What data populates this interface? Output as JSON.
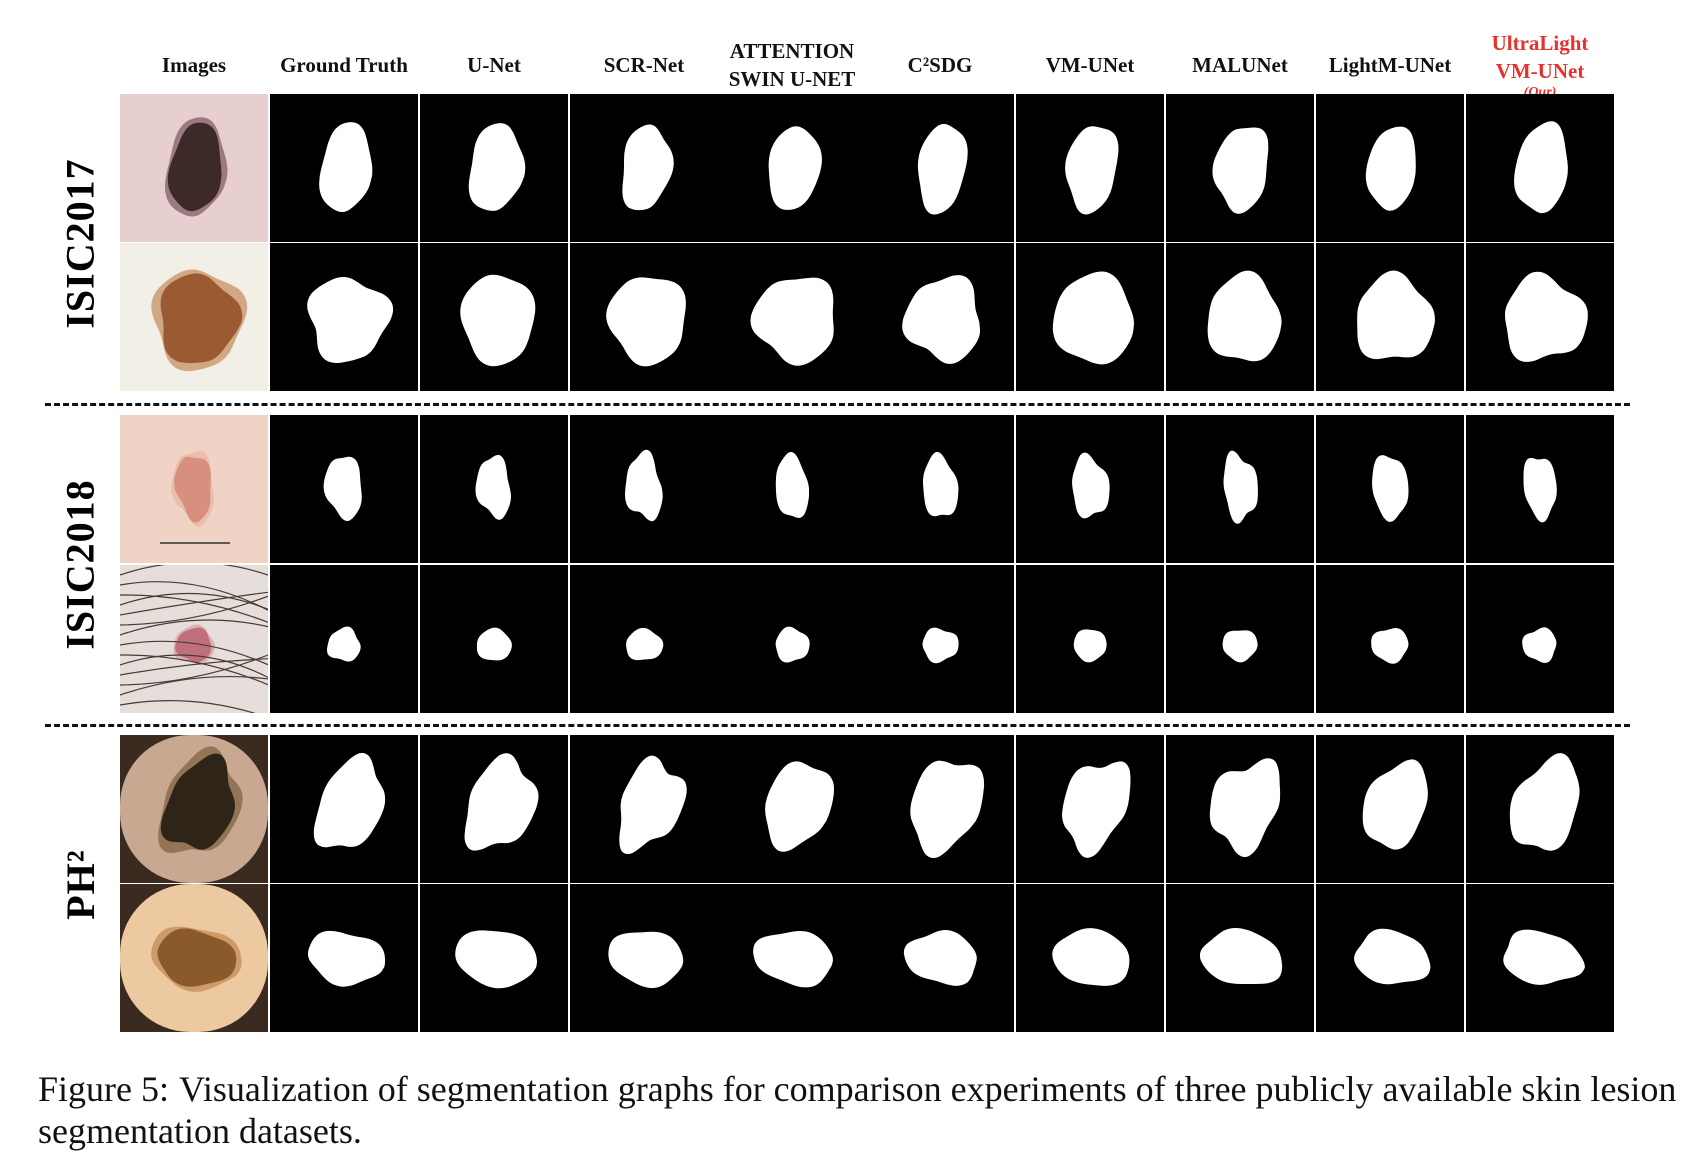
{
  "columns": [
    {
      "label": "Images"
    },
    {
      "label": "Ground Truth"
    },
    {
      "label": "U-Net"
    },
    {
      "label": "SCR-Net"
    },
    {
      "label": "ATTENTION\nSWIN U-NET"
    },
    {
      "label": "C²SDG"
    },
    {
      "label": "VM-UNet"
    },
    {
      "label": "MALUNet"
    },
    {
      "label": "LightM-UNet"
    },
    {
      "label": "UltraLight\nVM-UNet",
      "sub": "(Our)",
      "highlight": true
    }
  ],
  "datasets": [
    {
      "label": "ISIC2017"
    },
    {
      "label": "ISIC2018"
    },
    {
      "label": "PH²"
    }
  ],
  "caption": {
    "label": "Figure 5:",
    "text": "Visualization of segmentation graphs for comparison experiments of three publicly available skin lesion segmentation datasets."
  },
  "colors": {
    "highlight": "#e8312c",
    "mask_bg": "#000000",
    "mask_fg": "#ffffff"
  }
}
